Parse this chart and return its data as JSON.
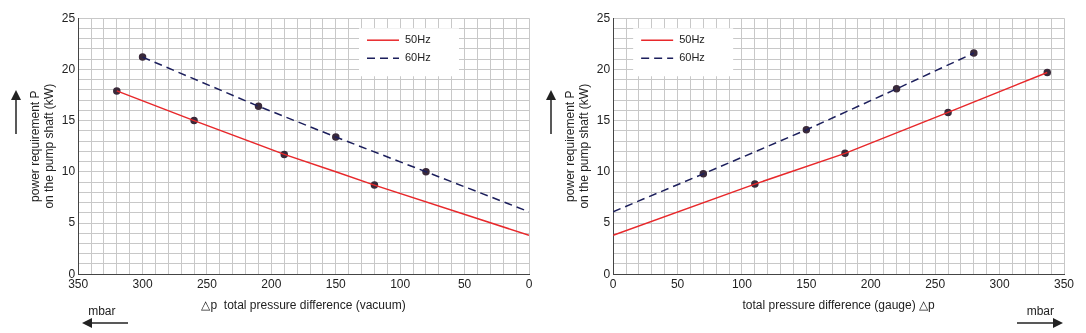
{
  "chart_data": [
    {
      "type": "line",
      "xlabel": "△p  total pressure difference (vacuum)",
      "ylabel": "power requirement P\non the pump shaft (kW)",
      "annotations": [
        "mbar"
      ],
      "xlim": [
        350,
        0
      ],
      "ylim": [
        0,
        25
      ],
      "xticks": [
        0,
        {
          "value": 10,
          "label": null
        },
        {
          "value": 20,
          "label": null
        },
        {
          "value": 30,
          "label": null
        },
        {
          "value": 40,
          "label": null
        },
        50,
        {
          "value": 60,
          "label": null
        },
        {
          "value": 70,
          "label": null
        },
        {
          "value": 80,
          "label": null
        },
        {
          "value": 90,
          "label": null
        },
        100,
        {
          "value": 110,
          "label": null
        },
        {
          "value": 120,
          "label": null
        },
        {
          "value": 130,
          "label": null
        },
        {
          "value": 140,
          "label": null
        },
        150,
        {
          "value": 160,
          "label": null
        },
        {
          "value": 170,
          "label": null
        },
        {
          "value": 180,
          "label": null
        },
        {
          "value": 190,
          "label": null
        },
        200,
        {
          "value": 210,
          "label": null
        },
        {
          "value": 220,
          "label": null
        },
        {
          "value": 230,
          "label": null
        },
        {
          "value": 240,
          "label": null
        },
        250,
        {
          "value": 260,
          "label": null
        },
        {
          "value": 270,
          "label": null
        },
        {
          "value": 280,
          "label": null
        },
        {
          "value": 290,
          "label": null
        },
        300,
        {
          "value": 310,
          "label": null
        },
        {
          "value": 320,
          "label": null
        },
        {
          "value": 330,
          "label": null
        },
        {
          "value": 340,
          "label": null
        },
        350
      ],
      "yticks": [
        0,
        {
          "value": 1,
          "label": null
        },
        {
          "value": 2,
          "label": null
        },
        {
          "value": 3,
          "label": null
        },
        {
          "value": 4,
          "label": null
        },
        5,
        {
          "value": 6,
          "label": null
        },
        {
          "value": 7,
          "label": null
        },
        {
          "value": 8,
          "label": null
        },
        {
          "value": 9,
          "label": null
        },
        10,
        {
          "value": 11,
          "label": null
        },
        {
          "value": 12,
          "label": null
        },
        {
          "value": 13,
          "label": null
        },
        {
          "value": 14,
          "label": null
        },
        15,
        {
          "value": 16,
          "label": null
        },
        {
          "value": 17,
          "label": null
        },
        {
          "value": 18,
          "label": null
        },
        {
          "value": 19,
          "label": null
        },
        20,
        {
          "value": 21,
          "label": null
        },
        {
          "value": 22,
          "label": null
        },
        {
          "value": 23,
          "label": null
        },
        {
          "value": 24,
          "label": null
        },
        25
      ],
      "grid": true,
      "legend": "top right",
      "series": [
        {
          "name": "50Hz",
          "color": "#e8282b",
          "line_style": "solid",
          "marker": "none",
          "x": [
            320,
            260,
            190,
            150,
            120,
            0
          ],
          "values": [
            17.9,
            15.0,
            11.7,
            10.0,
            8.7,
            3.8
          ]
        },
        {
          "name": "60Hz",
          "color": "#1c1f5c",
          "line_style": "dashed",
          "marker": "none",
          "x": [
            300,
            210,
            150,
            80,
            0
          ],
          "values": [
            21.2,
            16.4,
            13.4,
            10.0,
            6.1
          ]
        },
        {
          "type": "scatter",
          "color": "#3a2a3a",
          "marker": "circle",
          "x": [
            320,
            260,
            190,
            120,
            300,
            210,
            150,
            80
          ],
          "values": [
            17.9,
            15.0,
            11.7,
            8.7,
            21.2,
            16.4,
            13.4,
            10.0
          ]
        }
      ]
    },
    {
      "type": "line",
      "xlabel": "total pressure difference (gauge) △p",
      "ylabel": "power requirement P\non the pump shaft (kW)",
      "annotations": [
        "mbar"
      ],
      "xlim": [
        0,
        350
      ],
      "ylim": [
        0,
        25
      ],
      "xticks": [
        0,
        {
          "value": 10,
          "label": null
        },
        {
          "value": 20,
          "label": null
        },
        {
          "value": 30,
          "label": null
        },
        {
          "value": 40,
          "label": null
        },
        50,
        {
          "value": 60,
          "label": null
        },
        {
          "value": 70,
          "label": null
        },
        {
          "value": 80,
          "label": null
        },
        {
          "value": 90,
          "label": null
        },
        100,
        {
          "value": 110,
          "label": null
        },
        {
          "value": 120,
          "label": null
        },
        {
          "value": 130,
          "label": null
        },
        {
          "value": 140,
          "label": null
        },
        150,
        {
          "value": 160,
          "label": null
        },
        {
          "value": 170,
          "label": null
        },
        {
          "value": 180,
          "label": null
        },
        {
          "value": 190,
          "label": null
        },
        200,
        {
          "value": 210,
          "label": null
        },
        {
          "value": 220,
          "label": null
        },
        {
          "value": 230,
          "label": null
        },
        {
          "value": 240,
          "label": null
        },
        250,
        {
          "value": 260,
          "label": null
        },
        {
          "value": 270,
          "label": null
        },
        {
          "value": 280,
          "label": null
        },
        {
          "value": 290,
          "label": null
        },
        300,
        {
          "value": 310,
          "label": null
        },
        {
          "value": 320,
          "label": null
        },
        {
          "value": 330,
          "label": null
        },
        {
          "value": 340,
          "label": null
        },
        350
      ],
      "yticks": [
        0,
        {
          "value": 1,
          "label": null
        },
        {
          "value": 2,
          "label": null
        },
        {
          "value": 3,
          "label": null
        },
        {
          "value": 4,
          "label": null
        },
        5,
        {
          "value": 6,
          "label": null
        },
        {
          "value": 7,
          "label": null
        },
        {
          "value": 8,
          "label": null
        },
        {
          "value": 9,
          "label": null
        },
        10,
        {
          "value": 11,
          "label": null
        },
        {
          "value": 12,
          "label": null
        },
        {
          "value": 13,
          "label": null
        },
        {
          "value": 14,
          "label": null
        },
        15,
        {
          "value": 16,
          "label": null
        },
        {
          "value": 17,
          "label": null
        },
        {
          "value": 18,
          "label": null
        },
        {
          "value": 19,
          "label": null
        },
        20,
        {
          "value": 21,
          "label": null
        },
        {
          "value": 22,
          "label": null
        },
        {
          "value": 23,
          "label": null
        },
        {
          "value": 24,
          "label": null
        },
        25
      ],
      "grid": true,
      "legend": "top left",
      "series": [
        {
          "name": "50Hz",
          "color": "#e8282b",
          "line_style": "solid",
          "marker": "none",
          "x": [
            0,
            110,
            180,
            260,
            337
          ],
          "values": [
            3.8,
            8.8,
            11.8,
            15.8,
            19.7
          ]
        },
        {
          "name": "60Hz",
          "color": "#1c1f5c",
          "line_style": "dashed",
          "marker": "none",
          "x": [
            0,
            70,
            150,
            220,
            280
          ],
          "values": [
            6.1,
            9.8,
            14.1,
            18.1,
            21.6
          ]
        },
        {
          "type": "scatter",
          "color": "#3a2a3a",
          "marker": "circle",
          "x": [
            110,
            180,
            260,
            337,
            70,
            150,
            220,
            280
          ],
          "values": [
            8.8,
            11.8,
            15.8,
            19.7,
            9.8,
            14.1,
            18.1,
            21.6
          ]
        }
      ]
    }
  ]
}
